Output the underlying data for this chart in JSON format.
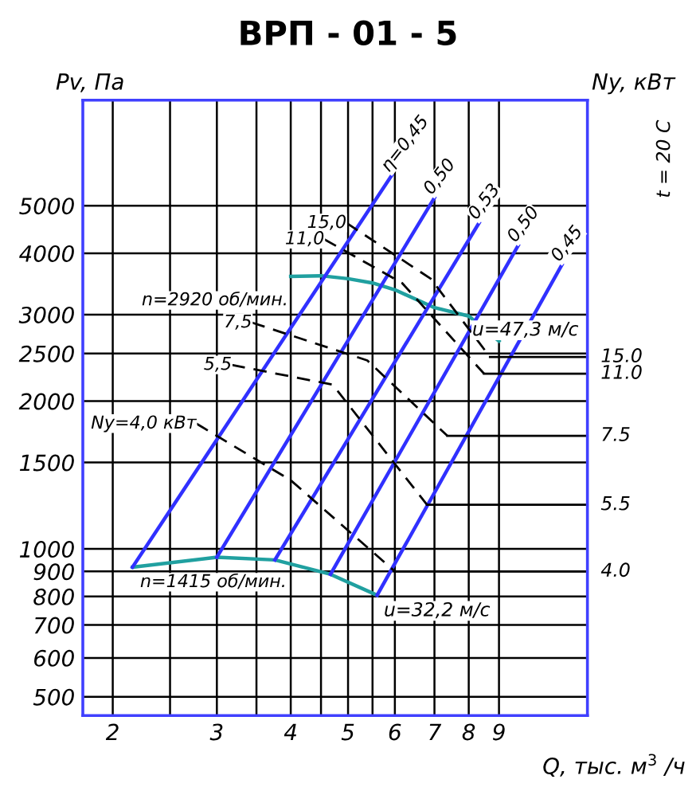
{
  "chart_data": {
    "type": "line",
    "title": "ВРП - 01 - 5",
    "xlabel": "Q, тыс. м$^{3}$ /ч",
    "ylabel": "Pv, Па",
    "y2label": "Ny, кВт",
    "log": "xy",
    "grid": true,
    "marker": "none",
    "xlim": [
      1.78,
      12.7
    ],
    "ylim": [
      458,
      8200
    ],
    "xticks": [
      2,
      {
        "value": 2.5,
        "label": null
      },
      3,
      {
        "value": 3.5,
        "label": null
      },
      4,
      {
        "value": 4.5,
        "label": null
      },
      5,
      {
        "value": 5.5,
        "label": null
      },
      6,
      7,
      8,
      9
    ],
    "yticks": [
      500,
      600,
      700,
      800,
      900,
      1000,
      1500,
      2000,
      2500,
      3000,
      4000,
      5000
    ],
    "annotations": [
      "t = 20 С",
      {
        "text": "u=47,3 м/с",
        "x": 7.9,
        "y": 3000
      },
      {
        "text": "u=32,2 м/с",
        "x": 5.6,
        "y": 805
      }
    ],
    "series": [
      {
        "name": "n=2920 об/мин.",
        "color": "#20a0a0",
        "line_style": "solid",
        "x": [
          4.0,
          4.5,
          5,
          5.5,
          6,
          7,
          8,
          9
        ],
        "values": [
          3590,
          3600,
          3550,
          3480,
          3370,
          3100,
          2980,
          2650
        ]
      },
      {
        "name": "n=1415 об/мин.",
        "color": "#20a0a0",
        "line_style": "solid",
        "x": [
          2.16,
          3,
          3.76,
          4.67,
          5.6
        ],
        "values": [
          918,
          962,
          950,
          888,
          805
        ]
      },
      {
        "name": "η=0,45",
        "color": "#3030ff",
        "line_style": "solid",
        "x": [
          2.16,
          5.93
        ],
        "values": [
          918,
          5770
        ]
      },
      {
        "name": "0,50",
        "color": "#3030ff",
        "line_style": "solid",
        "x": [
          3,
          7.0
        ],
        "values": [
          962,
          5190
        ]
      },
      {
        "name": "0,53",
        "color": "#3030ff",
        "line_style": "solid",
        "x": [
          3.76,
          8.33
        ],
        "values": [
          950,
          4615
        ]
      },
      {
        "name": "0,50",
        "color": "#3030ff",
        "line_style": "solid",
        "x": [
          4.67,
          9.7
        ],
        "values": [
          888,
          4150
        ]
      },
      {
        "name": "0,45",
        "color": "#3030ff",
        "line_style": "solid",
        "x": [
          5.6,
          11.5
        ],
        "values": [
          805,
          3790
        ]
      },
      {
        "name": "15,0",
        "color": "#000000",
        "line_style": "dashed",
        "x": [
          4.97,
          6.9,
          8.69
        ],
        "values": [
          4610,
          3550,
          2460
        ]
      },
      {
        "name": "11,0",
        "color": "#000000",
        "line_style": "dashed",
        "x": [
          4.56,
          6.17,
          8.49
        ],
        "values": [
          4270,
          3480,
          2275
        ]
      },
      {
        "name": "7,5",
        "color": "#000000",
        "line_style": "dashed",
        "x": [
          3.44,
          5.39,
          7.36
        ],
        "values": [
          2890,
          2420,
          1700
        ]
      },
      {
        "name": "5,5",
        "color": "#000000",
        "line_style": "dashed",
        "x": [
          3.18,
          4.71,
          6.8
        ],
        "values": [
          2370,
          2160,
          1230
        ]
      },
      {
        "name": "Ny=4,0 кВт",
        "color": "#000000",
        "line_style": "dashed",
        "x": [
          2.77,
          4.0,
          6.0
        ],
        "values": [
          1800,
          1380,
          900
        ]
      },
      {
        "name": "15.0",
        "color": "#000000",
        "line_style": "solid",
        "x": [
          8.69,
          12.7
        ],
        "values": [
          2460,
          2460
        ]
      },
      {
        "name": "11.0",
        "color": "#000000",
        "line_style": "solid",
        "x": [
          8.49,
          12.7
        ],
        "values": [
          2275,
          2275
        ]
      },
      {
        "name": "7.5",
        "color": "#000000",
        "line_style": "solid",
        "x": [
          7.36,
          12.7
        ],
        "values": [
          1700,
          1700
        ]
      },
      {
        "name": "5.5",
        "color": "#000000",
        "line_style": "solid",
        "x": [
          6.8,
          12.7
        ],
        "values": [
          1230,
          1230
        ]
      },
      {
        "name": "4.0",
        "color": "#000000",
        "line_style": "solid",
        "x": [
          6.0,
          12.7
        ],
        "values": [
          900,
          900
        ]
      }
    ]
  }
}
